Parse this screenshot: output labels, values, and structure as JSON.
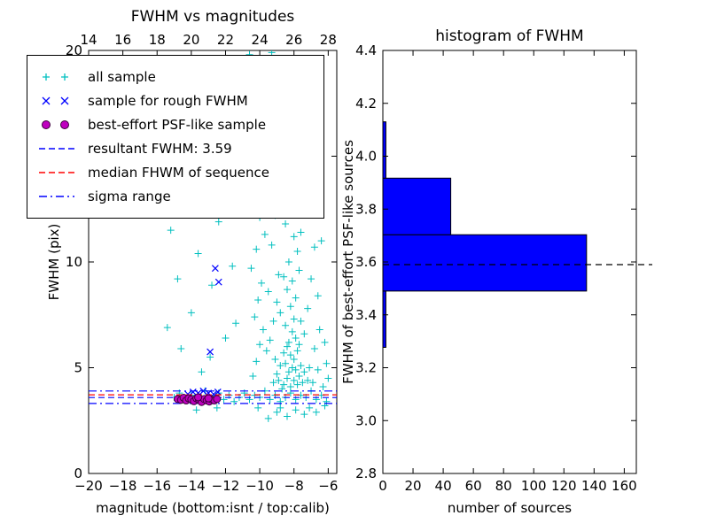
{
  "figure": {
    "background": "#ffffff"
  },
  "chart_data": [
    {
      "id": "fwhm_vs_magnitudes",
      "type": "scatter",
      "title": "FWHM vs magnitudes",
      "xlabel": "magnitude (bottom:isnt / top:calib)",
      "ylabel": "FWHM (pix)",
      "xlim": [
        -20,
        -5.5
      ],
      "ylim": [
        0,
        20
      ],
      "xticks": [
        -20,
        -18,
        -16,
        -14,
        -12,
        -10,
        -8,
        -6
      ],
      "xticklabels": [
        "−20",
        "−18",
        "−16",
        "−14",
        "−12",
        "−10",
        "−8",
        "−6"
      ],
      "yticks": [
        0,
        5,
        10,
        15,
        20
      ],
      "yticklabels": [
        "0",
        "5",
        "10",
        "15",
        "20"
      ],
      "top_axis": {
        "ticks": [
          14,
          16,
          18,
          20,
          22,
          24,
          26,
          28
        ],
        "labels": [
          "14",
          "16",
          "18",
          "20",
          "22",
          "24",
          "26",
          "28"
        ],
        "offset": 34
      },
      "grid": false,
      "legend_position": "upper left",
      "series": [
        {
          "name": "all sample",
          "marker": "plus",
          "color": "#00BFBF",
          "points": [
            [
              -15.0,
              3.6
            ],
            [
              -14.7,
              3.8
            ],
            [
              -14.3,
              3.5
            ],
            [
              -14.0,
              3.7
            ],
            [
              -13.8,
              3.4
            ],
            [
              -13.5,
              3.6
            ],
            [
              -13.2,
              3.9
            ],
            [
              -13.0,
              3.5
            ],
            [
              -12.7,
              3.6
            ],
            [
              -12.4,
              3.8
            ],
            [
              -12.1,
              3.5
            ],
            [
              -11.8,
              3.7
            ],
            [
              -11.5,
              3.4
            ],
            [
              -11.2,
              3.6
            ],
            [
              -10.9,
              3.8
            ],
            [
              -10.6,
              3.5
            ],
            [
              -10.3,
              3.7
            ],
            [
              -10.0,
              3.6
            ],
            [
              -9.7,
              3.9
            ],
            [
              -9.4,
              3.5
            ],
            [
              -9.1,
              3.7
            ],
            [
              -8.8,
              3.4
            ],
            [
              -8.5,
              3.6
            ],
            [
              -8.2,
              3.8
            ],
            [
              -7.9,
              3.5
            ],
            [
              -7.6,
              3.7
            ],
            [
              -7.3,
              3.6
            ],
            [
              -7.0,
              3.9
            ],
            [
              -6.7,
              3.5
            ],
            [
              -6.4,
              3.7
            ],
            [
              -6.1,
              3.4
            ],
            [
              -8.6,
              4.2
            ],
            [
              -8.4,
              4.5
            ],
            [
              -8.2,
              4.1
            ],
            [
              -8.0,
              4.4
            ],
            [
              -7.8,
              4.2
            ],
            [
              -7.7,
              4.6
            ],
            [
              -8.3,
              4.8
            ],
            [
              -8.1,
              5.0
            ],
            [
              -7.9,
              4.9
            ],
            [
              -8.5,
              5.2
            ],
            [
              -8.0,
              5.4
            ],
            [
              -7.6,
              5.1
            ],
            [
              -8.2,
              5.6
            ],
            [
              -7.8,
              5.8
            ],
            [
              -8.4,
              6.0
            ],
            [
              -8.7,
              4.0
            ],
            [
              -7.5,
              4.3
            ],
            [
              -7.4,
              4.8
            ],
            [
              -7.2,
              4.4
            ],
            [
              -7.1,
              5.0
            ],
            [
              -8.9,
              4.4
            ],
            [
              -9.0,
              4.7
            ],
            [
              -9.2,
              4.3
            ],
            [
              -8.8,
              5.1
            ],
            [
              -9.1,
              5.4
            ],
            [
              -8.6,
              5.7
            ],
            [
              -8.3,
              6.2
            ],
            [
              -7.9,
              6.4
            ],
            [
              -8.1,
              6.7
            ],
            [
              -8.5,
              7.0
            ],
            [
              -7.7,
              6.1
            ],
            [
              -7.4,
              6.6
            ],
            [
              -8.0,
              7.3
            ],
            [
              -8.8,
              7.6
            ],
            [
              -8.2,
              7.9
            ],
            [
              -7.6,
              7.2
            ],
            [
              -7.9,
              8.3
            ],
            [
              -8.4,
              8.7
            ],
            [
              -8.1,
              9.1
            ],
            [
              -7.7,
              9.6
            ],
            [
              -8.6,
              9.3
            ],
            [
              -8.3,
              10.0
            ],
            [
              -7.8,
              10.5
            ],
            [
              -8.0,
              11.2
            ],
            [
              -8.5,
              11.8
            ],
            [
              -7.6,
              11.4
            ],
            [
              -8.2,
              12.3
            ],
            [
              -7.9,
              13.0
            ],
            [
              -8.4,
              13.6
            ],
            [
              -7.7,
              14.2
            ],
            [
              -8.1,
              14.9
            ],
            [
              -8.6,
              15.5
            ],
            [
              -7.8,
              16.2
            ],
            [
              -8.3,
              16.9
            ],
            [
              -8.0,
              17.6
            ],
            [
              -7.5,
              18.3
            ],
            [
              -8.2,
              19.0
            ],
            [
              -7.9,
              19.6
            ],
            [
              -8.5,
              18.0
            ],
            [
              -7.3,
              17.2
            ],
            [
              -10.4,
              4.6
            ],
            [
              -10.2,
              5.3
            ],
            [
              -10.0,
              6.1
            ],
            [
              -9.8,
              6.8
            ],
            [
              -10.3,
              7.4
            ],
            [
              -10.1,
              8.2
            ],
            [
              -9.9,
              9.0
            ],
            [
              -10.5,
              9.7
            ],
            [
              -10.2,
              10.6
            ],
            [
              -9.7,
              11.3
            ],
            [
              -10.0,
              12.1
            ],
            [
              -10.4,
              13.2
            ],
            [
              -9.9,
              14.1
            ],
            [
              -10.1,
              15.3
            ],
            [
              -10.3,
              16.4
            ],
            [
              -9.8,
              17.5
            ],
            [
              -10.0,
              18.7
            ],
            [
              -10.2,
              19.5
            ],
            [
              -9.6,
              5.8
            ],
            [
              -9.5,
              8.6
            ],
            [
              -15.2,
              11.5
            ],
            [
              -14.8,
              9.2
            ],
            [
              -14.4,
              12.8
            ],
            [
              -14.0,
              7.6
            ],
            [
              -13.6,
              10.4
            ],
            [
              -13.2,
              14.2
            ],
            [
              -12.8,
              8.9
            ],
            [
              -12.4,
              11.9
            ],
            [
              -12.0,
              6.4
            ],
            [
              -11.6,
              9.8
            ],
            [
              -13.9,
              16.8
            ],
            [
              -12.6,
              15.4
            ],
            [
              -14.6,
              5.9
            ],
            [
              -13.4,
              4.8
            ],
            [
              -12.2,
              13.4
            ],
            [
              -11.4,
              7.1
            ],
            [
              -11.9,
              18.2
            ],
            [
              -14.2,
              19.1
            ],
            [
              -11.2,
              12.6
            ],
            [
              -13.0,
              19.6
            ],
            [
              -12.9,
              5.5
            ],
            [
              -15.4,
              6.9
            ],
            [
              -6.9,
              4.3
            ],
            [
              -6.6,
              4.9
            ],
            [
              -6.3,
              4.1
            ],
            [
              -6.1,
              5.2
            ],
            [
              -6.8,
              5.9
            ],
            [
              -6.5,
              6.8
            ],
            [
              -6.2,
              3.2
            ],
            [
              -7.1,
              3.1
            ],
            [
              -6.0,
              4.5
            ],
            [
              -9.0,
              2.9
            ],
            [
              -8.4,
              2.7
            ],
            [
              -7.9,
              3.0
            ],
            [
              -8.8,
              3.1
            ],
            [
              -7.4,
              2.8
            ],
            [
              -10.1,
              3.1
            ],
            [
              -9.5,
              2.6
            ],
            [
              -6.7,
              2.9
            ],
            [
              -12.5,
              3.1
            ],
            [
              -13.7,
              3.0
            ],
            [
              -9.3,
              19.9
            ],
            [
              -10.6,
              19.8
            ],
            [
              -9.4,
              6.3
            ],
            [
              -9.2,
              7.2
            ],
            [
              -9.0,
              8.1
            ],
            [
              -8.9,
              9.4
            ],
            [
              -9.3,
              10.8
            ],
            [
              -9.1,
              12.2
            ],
            [
              -8.9,
              13.8
            ],
            [
              -9.2,
              15.6
            ],
            [
              -9.0,
              17.3
            ],
            [
              -8.8,
              18.8
            ],
            [
              -7.2,
              7.8
            ],
            [
              -7.0,
              9.2
            ],
            [
              -6.8,
              10.7
            ],
            [
              -7.1,
              12.5
            ],
            [
              -6.9,
              14.3
            ],
            [
              -7.3,
              16.0
            ],
            [
              -7.0,
              18.1
            ],
            [
              -6.6,
              8.4
            ],
            [
              -6.4,
              11.0
            ],
            [
              -6.2,
              6.2
            ]
          ]
        },
        {
          "name": "sample for rough FWHM",
          "marker": "x",
          "color": "#0000FF",
          "points": [
            [
              -12.6,
              9.7
            ],
            [
              -12.4,
              9.05
            ],
            [
              -12.9,
              5.75
            ],
            [
              -14.2,
              3.75
            ],
            [
              -13.9,
              3.85
            ],
            [
              -13.6,
              3.8
            ],
            [
              -13.3,
              3.9
            ],
            [
              -13.0,
              3.8
            ],
            [
              -12.7,
              3.75
            ],
            [
              -12.45,
              3.85
            ]
          ]
        },
        {
          "name": "best-effort PSF-like sample",
          "marker": "circle",
          "color": "#BF00BF",
          "edge": "#3D003D",
          "points": [
            [
              -14.8,
              3.52
            ],
            [
              -14.6,
              3.48
            ],
            [
              -14.45,
              3.58
            ],
            [
              -14.3,
              3.45
            ],
            [
              -14.15,
              3.55
            ],
            [
              -14.0,
              3.5
            ],
            [
              -13.85,
              3.42
            ],
            [
              -13.7,
              3.55
            ],
            [
              -13.55,
              3.48
            ],
            [
              -13.4,
              3.38
            ],
            [
              -13.25,
              3.52
            ],
            [
              -13.1,
              3.45
            ],
            [
              -12.95,
              3.4
            ],
            [
              -12.8,
              3.5
            ],
            [
              -12.65,
              3.45
            ],
            [
              -12.5,
              3.52
            ],
            [
              -13.0,
              3.55
            ],
            [
              -13.6,
              3.6
            ]
          ]
        }
      ],
      "lines": [
        {
          "name": "resultant FWHM: 3.59",
          "y": 3.59,
          "style": "dashed",
          "color": "#0000FF"
        },
        {
          "name": "median FHWM of sequence",
          "y": 3.72,
          "style": "dashed",
          "color": "#FF0000"
        },
        {
          "name": "sigma range",
          "y": 3.9,
          "style": "dashdot",
          "color": "#0000FF"
        },
        {
          "name": "sigma range",
          "y": 3.31,
          "style": "dashdot",
          "color": "#0000FF"
        }
      ],
      "resultant_fwhm": 3.59
    },
    {
      "id": "histogram_of_fwhm",
      "type": "bar",
      "orientation": "horizontal",
      "title": "histogram of FWHM",
      "xlabel": "number of sources",
      "ylabel": "FWHM of best-effort PSF-like sources",
      "xlim": [
        0,
        168
      ],
      "ylim": [
        2.8,
        4.4
      ],
      "xticks": [
        0,
        20,
        40,
        60,
        80,
        100,
        120,
        140,
        160
      ],
      "xticklabels": [
        "0",
        "20",
        "40",
        "60",
        "80",
        "100",
        "120",
        "140",
        "160"
      ],
      "yticks": [
        2.8,
        3.0,
        3.2,
        3.4,
        3.6,
        3.8,
        4.0,
        4.2,
        4.4
      ],
      "yticklabels": [
        "2.8",
        "3.0",
        "3.2",
        "3.4",
        "3.6",
        "3.8",
        "4.0",
        "4.2",
        "4.4"
      ],
      "bin_edges": [
        3.277,
        3.49,
        3.703,
        3.917,
        4.13
      ],
      "counts": [
        2,
        135,
        45,
        2
      ],
      "bar_color": "#0000FF",
      "bar_edge_color": "#000000",
      "dashed_line_y": 3.59,
      "dashed_line_color": "#000000",
      "grid": false
    }
  ]
}
